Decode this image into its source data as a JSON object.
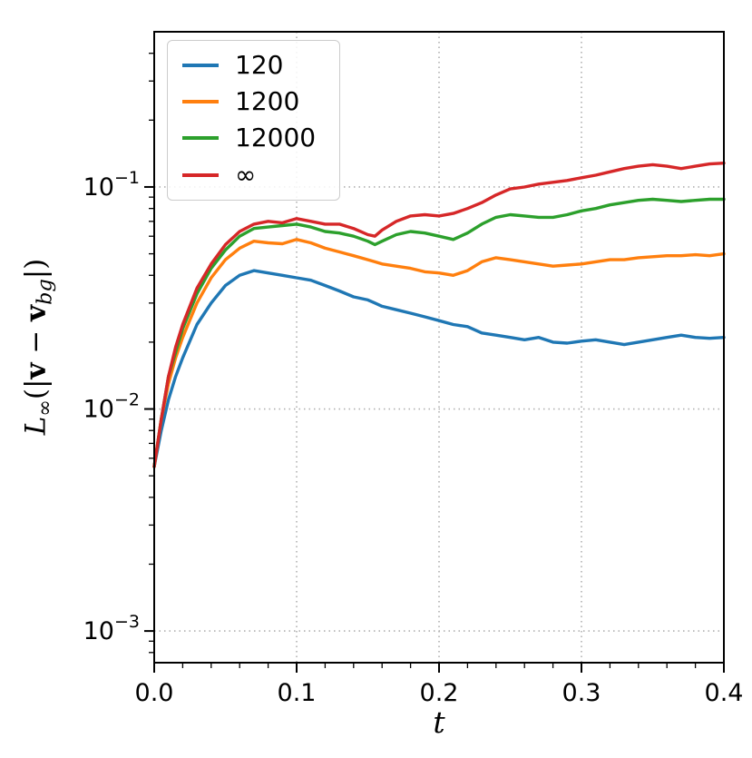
{
  "chart_data": {
    "type": "line",
    "title": "",
    "xlabel": "t",
    "ylabel": "L_inf(|v - v_bg|)",
    "yscale": "log",
    "grid": true,
    "legend_position": "upper left",
    "xlim": [
      0,
      0.4
    ],
    "ylim": [
      0.00072,
      0.5
    ],
    "xticks": [
      0.0,
      0.1,
      0.2,
      0.3,
      0.4
    ],
    "xtick_labels": [
      "0.0",
      "0.1",
      "0.2",
      "0.3",
      "0.4"
    ],
    "ytick_exponents": [
      -3,
      -2,
      -1
    ],
    "x": [
      0.0,
      0.005,
      0.01,
      0.015,
      0.02,
      0.03,
      0.04,
      0.05,
      0.06,
      0.07,
      0.08,
      0.09,
      0.1,
      0.11,
      0.12,
      0.13,
      0.14,
      0.15,
      0.155,
      0.16,
      0.17,
      0.18,
      0.19,
      0.2,
      0.21,
      0.22,
      0.23,
      0.24,
      0.25,
      0.26,
      0.27,
      0.28,
      0.29,
      0.3,
      0.31,
      0.32,
      0.33,
      0.34,
      0.35,
      0.36,
      0.37,
      0.38,
      0.39,
      0.4
    ],
    "series": [
      {
        "name": "120",
        "color": "#1f77b4",
        "values": [
          0.0055,
          0.008,
          0.011,
          0.014,
          0.017,
          0.024,
          0.03,
          0.036,
          0.04,
          0.042,
          0.041,
          0.04,
          0.039,
          0.038,
          0.036,
          0.034,
          0.032,
          0.031,
          0.03,
          0.029,
          0.028,
          0.027,
          0.026,
          0.025,
          0.024,
          0.0235,
          0.022,
          0.0215,
          0.021,
          0.0205,
          0.021,
          0.02,
          0.0198,
          0.0202,
          0.0205,
          0.02,
          0.0195,
          0.02,
          0.0205,
          0.021,
          0.0215,
          0.021,
          0.0208,
          0.021
        ]
      },
      {
        "name": "1200",
        "color": "#ff7f0e",
        "values": [
          0.0055,
          0.009,
          0.013,
          0.017,
          0.021,
          0.03,
          0.039,
          0.047,
          0.053,
          0.057,
          0.056,
          0.0555,
          0.058,
          0.056,
          0.053,
          0.051,
          0.049,
          0.047,
          0.046,
          0.045,
          0.044,
          0.043,
          0.0415,
          0.041,
          0.04,
          0.042,
          0.046,
          0.048,
          0.047,
          0.046,
          0.045,
          0.044,
          0.0445,
          0.045,
          0.046,
          0.047,
          0.047,
          0.048,
          0.0485,
          0.049,
          0.049,
          0.0495,
          0.049,
          0.05
        ]
      },
      {
        "name": "12000",
        "color": "#2ca02c",
        "values": [
          0.0055,
          0.009,
          0.014,
          0.018,
          0.023,
          0.033,
          0.043,
          0.052,
          0.06,
          0.065,
          0.066,
          0.067,
          0.068,
          0.066,
          0.063,
          0.062,
          0.06,
          0.057,
          0.055,
          0.057,
          0.061,
          0.063,
          0.062,
          0.06,
          0.058,
          0.062,
          0.068,
          0.073,
          0.075,
          0.074,
          0.073,
          0.073,
          0.075,
          0.078,
          0.08,
          0.083,
          0.085,
          0.087,
          0.088,
          0.087,
          0.086,
          0.087,
          0.088,
          0.088
        ]
      },
      {
        "name": "∞",
        "color": "#d62728",
        "values": [
          0.0055,
          0.009,
          0.014,
          0.019,
          0.024,
          0.035,
          0.045,
          0.055,
          0.063,
          0.068,
          0.07,
          0.069,
          0.072,
          0.07,
          0.068,
          0.068,
          0.065,
          0.061,
          0.06,
          0.064,
          0.07,
          0.074,
          0.075,
          0.074,
          0.076,
          0.08,
          0.085,
          0.092,
          0.098,
          0.1,
          0.103,
          0.105,
          0.107,
          0.11,
          0.113,
          0.117,
          0.121,
          0.124,
          0.126,
          0.124,
          0.121,
          0.124,
          0.127,
          0.128
        ]
      }
    ],
    "ylabel_parts": {
      "l": "L",
      "inf": "∞",
      "open": "(|",
      "v1": "v",
      "minus": " − ",
      "v2": "v",
      "bg": "bg",
      "close": "|)"
    }
  }
}
